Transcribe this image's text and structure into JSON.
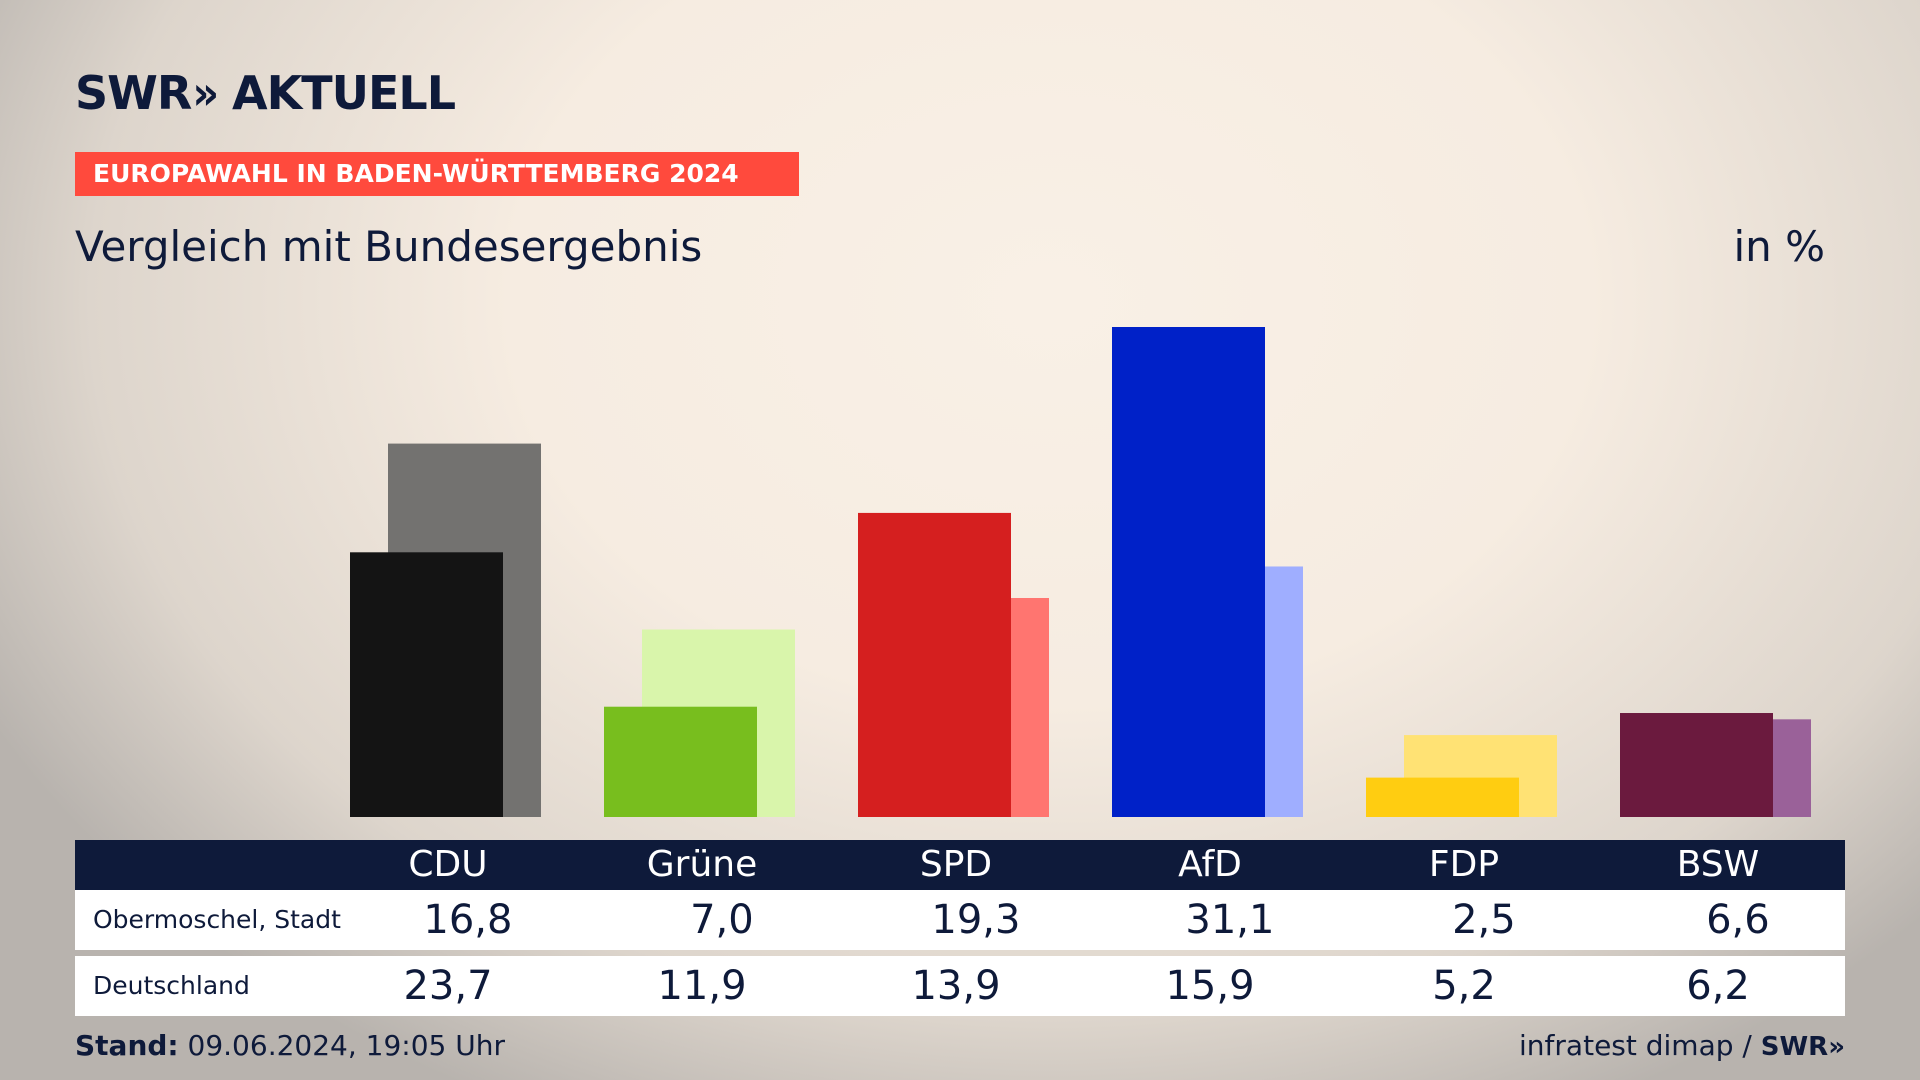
{
  "brand": {
    "logo_text": "SWR",
    "logo_chevrons": "»",
    "logo_suffix": "AKTUELL"
  },
  "topic": "EUROPAWAHL IN BADEN-WÜRTTEMBERG 2024",
  "title": "Vergleich mit Bundesergebnis",
  "unit": "in %",
  "table": {
    "rows": [
      {
        "label": "Obermoschel, Stadt",
        "values": [
          "16,8",
          "7,0",
          "19,3",
          "31,1",
          "2,5",
          "6,6"
        ]
      },
      {
        "label": "Deutschland",
        "values": [
          "23,7",
          "11,9",
          "13,9",
          "15,9",
          "5,2",
          "6,2"
        ]
      }
    ]
  },
  "footer": {
    "stand_label": "Stand:",
    "stand_value": "09.06.2024, 19:05 Uhr",
    "source": "infratest dimap /",
    "source_logo": "SWR»"
  },
  "chart_data": {
    "type": "bar",
    "categories": [
      "CDU",
      "Grüne",
      "SPD",
      "AfD",
      "FDP",
      "BSW"
    ],
    "series": [
      {
        "name": "Obermoschel, Stadt",
        "values": [
          16.8,
          7.0,
          19.3,
          31.1,
          2.5,
          6.6
        ],
        "colors": [
          "#141414",
          "#78be1e",
          "#d51f1f",
          "#0021c8",
          "#ffcd11",
          "#6b1a3e"
        ]
      },
      {
        "name": "Deutschland",
        "values": [
          23.7,
          11.9,
          13.9,
          15.9,
          5.2,
          6.2
        ],
        "colors": [
          "#737270",
          "#d9f5ab",
          "#ff7570",
          "#9faeff",
          "#ffe274",
          "#9a6199"
        ]
      }
    ],
    "ylim": [
      0,
      31.1
    ],
    "grid": false,
    "legend": "none"
  }
}
